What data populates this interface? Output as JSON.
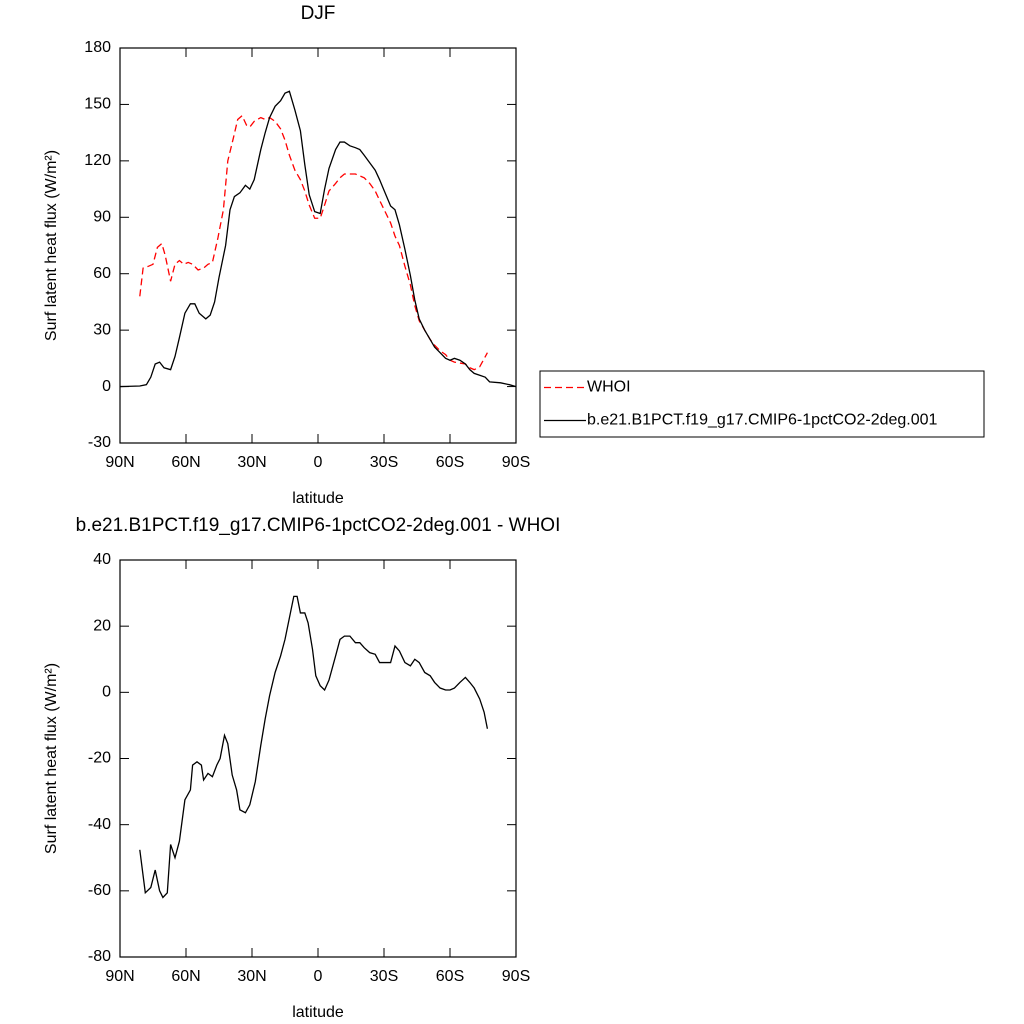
{
  "chart_data": [
    {
      "type": "line",
      "title": "DJF",
      "xlabel": "latitude",
      "ylabel": "Surf latent heat flux (W/m²)",
      "xlim": [
        90,
        -90
      ],
      "xticks": [
        {
          "value": 90,
          "label": "90N"
        },
        {
          "value": 60,
          "label": "60N"
        },
        {
          "value": 30,
          "label": "30N"
        },
        0,
        {
          "value": -30,
          "label": "30S"
        },
        {
          "value": -60,
          "label": "60S"
        },
        {
          "value": -90,
          "label": "90S"
        }
      ],
      "ylim": [
        -30,
        180
      ],
      "yticks": [
        -30,
        0,
        30,
        60,
        90,
        120,
        150,
        180
      ],
      "legend": "right",
      "series": [
        {
          "name": "WHOI",
          "color": "#ff0000",
          "dash": "dashed",
          "x": [
            81,
            79.5,
            77,
            75,
            73,
            71,
            69.5,
            67,
            65,
            63,
            61,
            59,
            57,
            54.5,
            52,
            50,
            48,
            45.5,
            43,
            41,
            38.5,
            36.5,
            34.5,
            32.5,
            31,
            29,
            26,
            24,
            22,
            19.5,
            17,
            15,
            13,
            10.5,
            8,
            6,
            4,
            1.5,
            -1,
            -3,
            -5,
            -8,
            -10,
            -12,
            -14.5,
            -17,
            -19,
            -21,
            -23.5,
            -26,
            -28,
            -30.5,
            -33,
            -35,
            -37,
            -39.5,
            -42,
            -44,
            -46,
            -48.5,
            -51,
            -53,
            -55.5,
            -58,
            -60,
            -62,
            -64.5,
            -67,
            -69,
            -71,
            -73.5,
            -77
          ],
          "values": [
            48,
            63,
            64,
            65,
            74,
            76,
            70,
            56,
            65,
            67,
            65,
            66,
            65,
            62,
            63,
            65,
            66,
            79,
            94,
            120,
            132,
            142,
            144,
            139,
            138,
            141,
            143,
            142,
            143,
            141,
            137,
            131,
            123,
            115,
            110,
            104,
            96.5,
            89.5,
            89.5,
            96.5,
            104,
            108,
            111,
            113,
            113,
            113,
            112,
            111,
            108,
            104,
            99,
            93,
            87,
            80,
            75,
            64,
            54,
            43,
            35,
            30,
            25,
            22,
            19,
            17,
            14,
            13,
            12.5,
            12,
            10,
            9,
            10.5,
            18
          ]
        },
        {
          "name": "b.e21.B1PCT.f19_g17.CMIP6-1pctCO2-2deg.001",
          "color": "#000000",
          "dash": "solid",
          "x": [
            90,
            81,
            78,
            76,
            74,
            72,
            70,
            67,
            65,
            63,
            60.5,
            58,
            56,
            54,
            51,
            49,
            47,
            45,
            42,
            40,
            38,
            35.5,
            33,
            31,
            29,
            26,
            24,
            22,
            19.5,
            17,
            15,
            13,
            10.5,
            8,
            6,
            4,
            1.5,
            -1,
            -3,
            -5,
            -8,
            -10,
            -12,
            -14.5,
            -17,
            -19,
            -21,
            -23.5,
            -26,
            -28,
            -30.5,
            -33,
            -35,
            -37,
            -39.5,
            -42,
            -44,
            -46,
            -48.5,
            -51,
            -53,
            -55.5,
            -58,
            -60,
            -62,
            -64.5,
            -67,
            -69,
            -71,
            -73.5,
            -76,
            -78,
            -83,
            -87,
            -90
          ],
          "values": [
            0,
            0.3,
            1,
            5,
            12,
            13,
            10,
            9,
            16,
            26,
            39,
            44,
            44,
            39,
            36,
            38,
            45,
            58,
            75,
            94,
            101,
            103,
            107,
            105,
            110,
            126,
            135,
            143,
            149,
            152,
            156,
            157,
            147,
            136,
            118,
            102,
            93,
            92,
            105,
            116,
            126,
            130,
            130,
            128,
            127,
            126,
            123,
            119,
            115,
            110,
            103,
            96,
            94,
            86,
            73,
            59,
            46,
            36,
            30,
            25,
            21,
            18,
            15,
            14,
            15,
            14,
            12,
            9,
            7,
            6,
            5,
            2.5,
            2,
            1,
            0
          ]
        }
      ]
    },
    {
      "type": "line",
      "title": "b.e21.B1PCT.f19_g17.CMIP6-1pctCO2-2deg.001 - WHOI",
      "xlabel": "latitude",
      "ylabel": "Surf latent heat flux (W/m²)",
      "xlim": [
        90,
        -90
      ],
      "xticks": [
        {
          "value": 90,
          "label": "90N"
        },
        {
          "value": 60,
          "label": "60N"
        },
        {
          "value": 30,
          "label": "30N"
        },
        0,
        {
          "value": -30,
          "label": "30S"
        },
        {
          "value": -60,
          "label": "60S"
        },
        {
          "value": -90,
          "label": "90S"
        }
      ],
      "ylim": [
        -80,
        40
      ],
      "yticks": [
        -80,
        -60,
        -40,
        -20,
        0,
        20,
        40
      ],
      "series": [
        {
          "color": "#000000",
          "dash": "solid",
          "x": [
            81,
            78.5,
            76,
            74,
            72,
            70.5,
            68.5,
            67,
            65,
            63,
            60.5,
            58,
            57,
            55,
            53,
            52,
            50,
            48,
            46,
            44.5,
            42.5,
            41,
            39,
            37,
            35.5,
            33,
            31,
            28.5,
            26,
            24,
            22,
            19.5,
            17,
            15,
            13,
            11,
            9.5,
            8,
            6,
            4.5,
            2.5,
            1,
            -1,
            -3,
            -5,
            -8,
            -10,
            -12,
            -14.5,
            -17,
            -19,
            -21,
            -23.5,
            -26,
            -28,
            -30.5,
            -33,
            -35,
            -37,
            -39.5,
            -42,
            -44,
            -46,
            -48.5,
            -51,
            -53,
            -55.5,
            -58,
            -60,
            -62,
            -64.5,
            -67,
            -69,
            -71,
            -73.5,
            -75.5,
            -77
          ],
          "values": [
            -47.6,
            -60.6,
            -59,
            -53.7,
            -60,
            -62,
            -60.6,
            -46,
            -50,
            -45,
            -32.5,
            -29.5,
            -22,
            -21,
            -22,
            -26.5,
            -24.5,
            -25.5,
            -22,
            -20,
            -13,
            -15.5,
            -25,
            -29.5,
            -35.5,
            -36.4,
            -34,
            -27,
            -16,
            -8,
            -1,
            6,
            11,
            16,
            22.5,
            29,
            29,
            24,
            24,
            21,
            13,
            5,
            2,
            0.7,
            3.7,
            11,
            16,
            17,
            17,
            15,
            15,
            13.5,
            12,
            11.5,
            9,
            9,
            9,
            14,
            12.5,
            9,
            8,
            10,
            9,
            6,
            5,
            3,
            1.3,
            0.7,
            0.7,
            1.3,
            3,
            4.5,
            3,
            1.3,
            -2,
            -6,
            -11
          ]
        }
      ]
    }
  ]
}
